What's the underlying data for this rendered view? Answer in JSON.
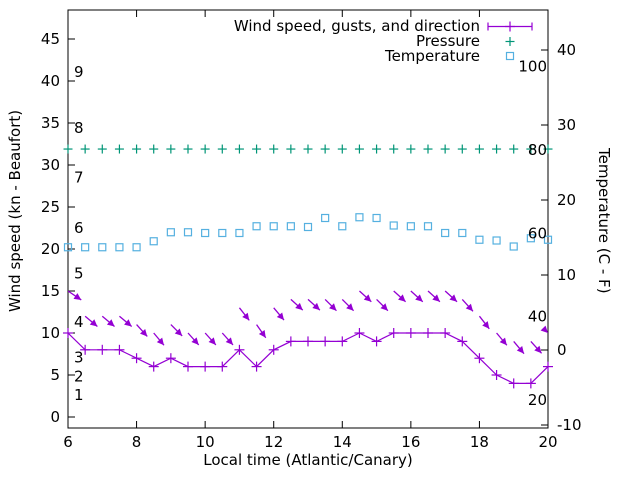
{
  "chart_data": {
    "type": "line",
    "title": "",
    "x": {
      "label": "Local time (Atlantic/Canary)",
      "range": [
        6,
        20
      ],
      "ticks": [
        6,
        8,
        10,
        12,
        14,
        16,
        18,
        20
      ],
      "data_interval_minutes": 30
    },
    "y_left": {
      "label": "Wind speed (kn - Beaufort)",
      "range_approx": [
        -1.5,
        48.5
      ],
      "ticks": [
        0,
        5,
        10,
        15,
        20,
        25,
        30,
        35,
        40,
        45
      ]
    },
    "y_right": {
      "label": "Temperature (C - F)",
      "range_approx": [
        -10.5,
        45.5
      ],
      "ticks": [
        -10,
        0,
        10,
        20,
        30,
        40
      ]
    },
    "inner_labels": {
      "beaufort": [
        {
          "text": "9",
          "kn": 41.1
        },
        {
          "text": "8",
          "kn": 34.4
        },
        {
          "text": "7",
          "kn": 28.5
        },
        {
          "text": "6",
          "kn": 22.5
        },
        {
          "text": "5",
          "kn": 17.1
        },
        {
          "text": "4",
          "kn": 11.3
        },
        {
          "text": "3",
          "kn": 7.1
        },
        {
          "text": "2",
          "kn": 4.8
        },
        {
          "text": "1",
          "kn": 2.6
        }
      ],
      "fahrenheit": [
        {
          "text": "100",
          "f": 100
        },
        {
          "text": "80",
          "f": 80
        },
        {
          "text": "60",
          "f": 60
        },
        {
          "text": "40",
          "f": 40
        },
        {
          "text": "20",
          "f": 20
        }
      ]
    },
    "times": [
      6,
      6.5,
      7,
      7.5,
      8,
      8.5,
      9,
      9.5,
      10,
      10.5,
      11,
      11.5,
      12,
      12.5,
      13,
      13.5,
      14,
      14.5,
      15,
      15.5,
      16,
      16.5,
      17,
      17.5,
      18,
      18.5,
      19,
      19.5,
      20
    ],
    "series": [
      {
        "name": "Wind speed, gusts, and direction",
        "color": "#9400d3",
        "marker": "plus",
        "axis": "left",
        "wind_kn": [
          10,
          8,
          8,
          8,
          7,
          6,
          7,
          6,
          6,
          6,
          8,
          6,
          8,
          9,
          9,
          9,
          9,
          10,
          9,
          10,
          10,
          10,
          10,
          9,
          7,
          5,
          4,
          4,
          6
        ],
        "gust_kn": [
          15,
          12,
          12,
          12,
          11,
          10,
          11,
          10,
          10,
          10,
          13,
          11,
          13,
          14,
          14,
          14,
          14,
          15,
          14,
          15,
          15,
          15,
          15,
          14,
          12,
          10,
          9,
          9,
          10
        ],
        "arrow_angle_deg_below_horizontal": [
          34,
          40,
          40,
          40,
          48,
          50,
          45,
          48,
          48,
          48,
          52,
          55,
          50,
          42,
          42,
          45,
          45,
          42,
          45,
          42,
          42,
          42,
          42,
          48,
          52,
          50,
          50,
          48,
          45
        ]
      },
      {
        "name": "Pressure",
        "color": "#009577",
        "marker": "plus",
        "axis": "left",
        "note": "no numeric pressure scale shown; plotted flat near 32 on the left-axis units",
        "plotted_left_axis_units": [
          31.9,
          31.9,
          31.9,
          31.9,
          31.9,
          31.9,
          31.9,
          31.9,
          31.9,
          31.9,
          31.9,
          31.9,
          31.9,
          31.9,
          31.9,
          31.9,
          31.9,
          31.9,
          31.9,
          31.9,
          31.9,
          31.9,
          31.9,
          31.9,
          31.9,
          31.9,
          31.9,
          31.9,
          31.9
        ]
      },
      {
        "name": "Temperature",
        "color": "#55b0e0",
        "marker": "open-square",
        "axis": "right",
        "celsius": [
          13.7,
          13.7,
          13.7,
          13.7,
          13.7,
          14.5,
          15.7,
          15.7,
          15.6,
          15.6,
          15.6,
          16.5,
          16.5,
          16.5,
          16.4,
          17.6,
          16.5,
          17.7,
          17.6,
          16.6,
          16.5,
          16.5,
          15.6,
          15.6,
          14.7,
          14.6,
          13.8,
          14.9,
          14.7
        ]
      }
    ],
    "legend": {
      "position": "top-right-inside",
      "entries": [
        "Wind speed, gusts, and direction",
        "Pressure",
        "Temperature"
      ]
    },
    "grid": false,
    "background": "#ffffff",
    "axis_color": "#000000"
  }
}
